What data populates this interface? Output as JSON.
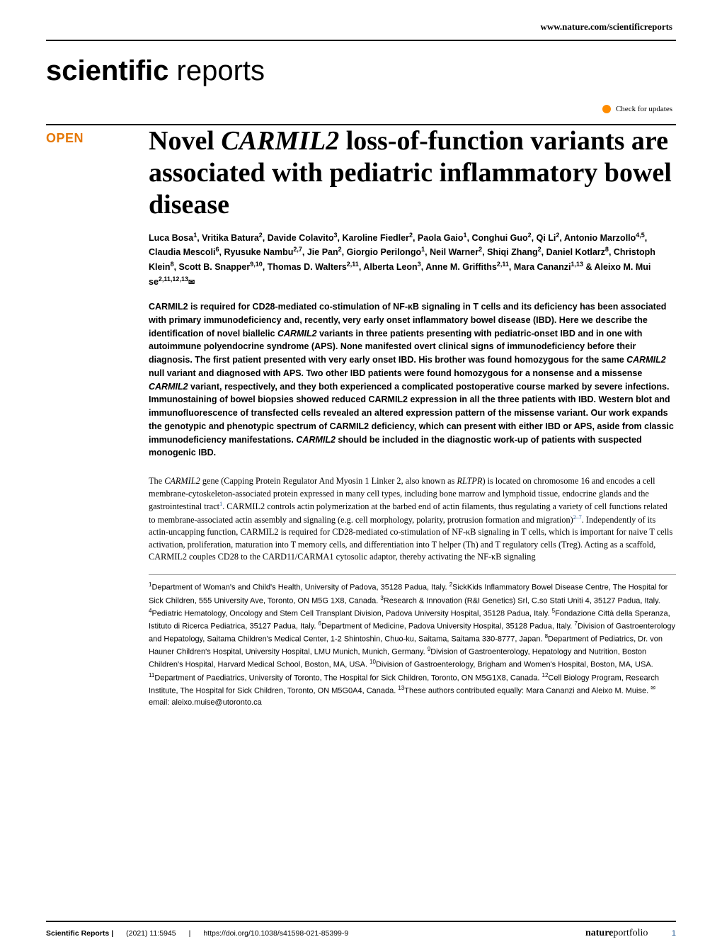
{
  "header": {
    "url": "www.nature.com/scientificreports"
  },
  "journal": {
    "bold_part": "scientific",
    "light_part": " reports"
  },
  "updates": {
    "label": "Check for updates"
  },
  "badge": {
    "open": "OPEN"
  },
  "title": {
    "html": "Novel <em>CARMIL2</em> loss-of-function variants are associated with pediatric inflammatory bowel disease"
  },
  "authors": {
    "html": "Luca Bosa<sup>1</sup>, Vritika Batura<sup>2</sup>, Davide Colavito<sup>3</sup>, Karoline Fiedler<sup>2</sup>, Paola Gaio<sup>1</sup>, Conghui Guo<sup>2</sup>, Qi Li<sup>2</sup>, Antonio Marzollo<sup>4,5</sup>, Claudia Mescoli<sup>6</sup>, Ryusuke Nambu<sup>2,7</sup>, Jie Pan<sup>2</sup>, Giorgio Perilongo<sup>1</sup>, Neil Warner<sup>2</sup>, Shiqi Zhang<sup>2</sup>, Daniel Kotlarz<sup>8</sup>, Christoph Klein<sup>8</sup>, Scott B. Snapper<sup>9,10</sup>, Thomas D. Walters<sup>2,11</sup>, Alberta Leon<sup>3</sup>, Anne M. Griffiths<sup>2,11</sup>, Mara Cananzi<sup>1,13</sup> & Aleixo M. Mui se<sup>2,11,12,13</sup><span class='envelope'>✉</span>"
  },
  "abstract": {
    "html": "CARMIL2 is required for CD28-mediated co-stimulation of NF-κB signaling in T cells and its deficiency has been associated with primary immunodeficiency and, recently, very early onset inflammatory bowel disease (IBD). Here we describe the identification of novel biallelic <em>CARMIL2</em> variants in three patients presenting with pediatric-onset IBD and in one with autoimmune polyendocrine syndrome (APS). None manifested overt clinical signs of immunodeficiency before their diagnosis. The first patient presented with very early onset IBD. His brother was found homozygous for the same <em>CARMIL2</em> null variant and diagnosed with APS. Two other IBD patients were found homozygous for a nonsense and a missense <em>CARMIL2</em> variant, respectively, and they both experienced a complicated postoperative course marked by severe infections. Immunostaining of bowel biopsies showed reduced CARMIL2 expression in all the three patients with IBD. Western blot and immunofluorescence of transfected cells revealed an altered expression pattern of the missense variant. Our work expands the genotypic and phenotypic spectrum of CARMIL2 deficiency, which can present with either IBD or APS, aside from classic immunodeficiency manifestations. <em>CARMIL2</em> should be included in the diagnostic work-up of patients with suspected monogenic IBD."
  },
  "body": {
    "html": "The <em>CARMIL2</em> gene (Capping Protein Regulator And Myosin 1 Linker 2, also known as <em>RLTPR</em>) is located on chromosome 16 and encodes a cell membrane-cytoskeleton-associated protein expressed in many cell types, including bone marrow and lymphoid tissue, endocrine glands and the gastrointestinal tract<sup>1</sup>. CARMIL2 controls actin polymerization at the barbed end of actin filaments, thus regulating a variety of cell functions related to membrane-associated actin assembly and signaling (e.g. cell morphology, polarity, protrusion formation and migration)<sup>2–7</sup>. Independently of its actin-uncapping function, CARMIL2 is required for CD28-mediated co-stimulation of NF-κB signaling in T cells, which is important for naive T cells activation, proliferation, maturation into T memory cells, and differentiation into T helper (Th) and T regulatory cells (Treg). Acting as a scaffold, CARMIL2 couples CD28 to the CARD11/CARMA1 cytosolic adaptor, thereby activating the NF-κB signaling"
  },
  "affiliations": {
    "html": "<sup>1</sup>Department of Woman's and Child's Health, University of Padova, 35128 Padua, Italy. <sup>2</sup>SickKids Inflammatory Bowel Disease Centre, The Hospital for Sick Children, 555 University Ave, Toronto, ON M5G 1X8, Canada. <sup>3</sup>Research & Innovation (R&I Genetics) Srl, C.so Stati Uniti 4, 35127 Padua, Italy. <sup>4</sup>Pediatric Hematology, Oncology and Stem Cell Transplant Division, Padova University Hospital, 35128 Padua, Italy. <sup>5</sup>Fondazione Città della Speranza, Istituto di Ricerca Pediatrica, 35127 Padua, Italy. <sup>6</sup>Department of Medicine, Padova University Hospital, 35128 Padua, Italy. <sup>7</sup>Division of Gastroenterology and Hepatology, Saitama Children's Medical Center, 1-2 Shintoshin, Chuo-ku, Saitama, Saitama 330-8777, Japan. <sup>8</sup>Department of Pediatrics, Dr. von Hauner Children's Hospital, University Hospital, LMU Munich, Munich, Germany. <sup>9</sup>Division of Gastroenterology, Hepatology and Nutrition, Boston Children's Hospital, Harvard Medical School, Boston, MA, USA. <sup>10</sup>Division of Gastroenterology, Brigham and Women's Hospital, Boston, MA, USA. <sup>11</sup>Department of Paediatrics, University of Toronto, The Hospital for Sick Children, Toronto, ON M5G1X8, Canada. <sup>12</sup>Cell Biology Program, Research Institute, The Hospital for Sick Children, Toronto, ON M5G0A4, Canada. <sup>13</sup>These authors contributed equally: Mara Cananzi and Aleixo M. Muise. <sup>✉</sup>email: aleixo.muise@utoronto.ca"
  },
  "footer": {
    "journal": "Scientific Reports |",
    "citation": "(2021) 11:5945",
    "divider": "|",
    "doi": "https://doi.org/10.1038/s41598-021-85399-9",
    "portfolio_bold": "nature",
    "portfolio_light": "portfolio",
    "page": "1"
  }
}
